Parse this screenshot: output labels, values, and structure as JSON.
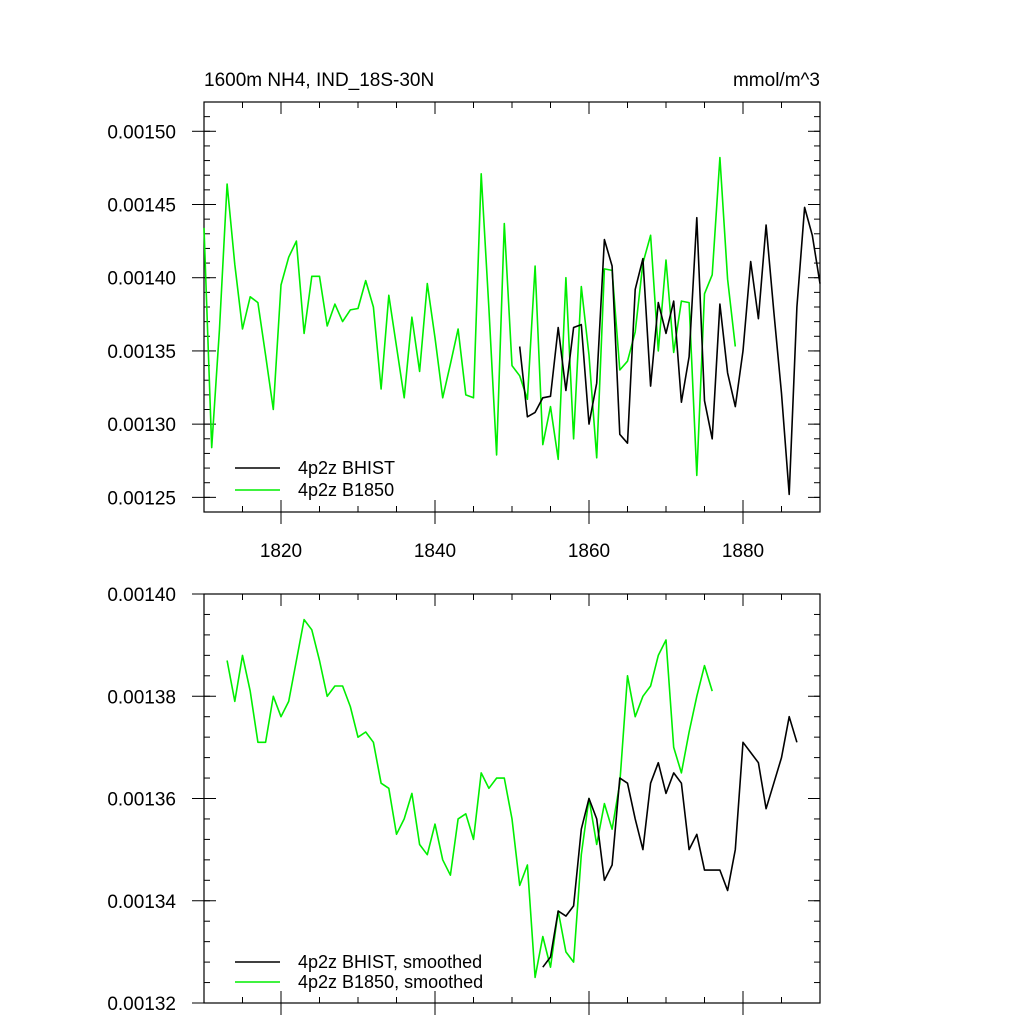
{
  "chart_data": [
    {
      "type": "line",
      "title": "1600m NH4, IND_18S-30N",
      "units": "mmol/m^3",
      "xlim": [
        1810,
        1890
      ],
      "ylim": [
        0.00124,
        0.00152
      ],
      "x_ticks": [
        {
          "value": 1820,
          "label": "1820"
        },
        {
          "value": 1840,
          "label": "1840"
        },
        {
          "value": 1860,
          "label": "1860"
        },
        {
          "value": 1880,
          "label": "1880"
        }
      ],
      "y_ticks": [
        {
          "value": 0.00125,
          "label": "0.00125"
        },
        {
          "value": 0.0013,
          "label": "0.00130"
        },
        {
          "value": 0.00135,
          "label": "0.00135"
        },
        {
          "value": 0.0014,
          "label": "0.00140"
        },
        {
          "value": 0.00145,
          "label": "0.00145"
        },
        {
          "value": 0.0015,
          "label": "0.00150"
        }
      ],
      "legend_position": "bottom-left",
      "series": [
        {
          "name": "4p2z BHIST",
          "color": "#000000",
          "x_start": 1851,
          "values": [
            0.001353,
            0.001305,
            0.001308,
            0.001318,
            0.001319,
            0.001366,
            0.001323,
            0.001366,
            0.001368,
            0.0013,
            0.001328,
            0.001426,
            0.001408,
            0.001293,
            0.001287,
            0.001392,
            0.001413,
            0.001326,
            0.001383,
            0.001362,
            0.001384,
            0.001315,
            0.001346,
            0.001441,
            0.001316,
            0.00129,
            0.001382,
            0.001335,
            0.001312,
            0.00135,
            0.001411,
            0.001372,
            0.001436,
            0.001377,
            0.001321,
            0.001252,
            0.00138,
            0.001448,
            0.001429,
            0.001396
          ]
        },
        {
          "name": "4p2z B1850",
          "color": "#00ee00",
          "x_start": 1810,
          "values": [
            0.001434,
            0.001284,
            0.001364,
            0.001464,
            0.001409,
            0.001365,
            0.001387,
            0.001383,
            0.001347,
            0.00131,
            0.001395,
            0.001414,
            0.001425,
            0.001362,
            0.001401,
            0.001401,
            0.001367,
            0.001382,
            0.00137,
            0.001378,
            0.001379,
            0.001398,
            0.00138,
            0.001324,
            0.001388,
            0.001353,
            0.001318,
            0.001373,
            0.001336,
            0.001396,
            0.001359,
            0.001318,
            0.001341,
            0.001365,
            0.00132,
            0.001318,
            0.001471,
            0.001379,
            0.001279,
            0.001437,
            0.00134,
            0.001333,
            0.001317,
            0.001408,
            0.001286,
            0.001312,
            0.001276,
            0.0014,
            0.00129,
            0.001394,
            0.001347,
            0.001277,
            0.001406,
            0.001405,
            0.001337,
            0.001343,
            0.001363,
            0.00141,
            0.001429,
            0.00135,
            0.001412,
            0.001349,
            0.001384,
            0.001383,
            0.001265,
            0.001389,
            0.001402,
            0.001482,
            0.001399,
            0.001353
          ]
        }
      ]
    },
    {
      "type": "line",
      "xlim": [
        1810,
        1890
      ],
      "ylim": [
        0.00132,
        0.0014
      ],
      "x_ticks": [
        {
          "value": 1820,
          "label": ""
        },
        {
          "value": 1840,
          "label": ""
        },
        {
          "value": 1860,
          "label": ""
        },
        {
          "value": 1880,
          "label": ""
        }
      ],
      "y_ticks": [
        {
          "value": 0.00132,
          "label": "0.00132"
        },
        {
          "value": 0.00134,
          "label": "0.00134"
        },
        {
          "value": 0.00136,
          "label": "0.00136"
        },
        {
          "value": 0.00138,
          "label": "0.00138"
        },
        {
          "value": 0.0014,
          "label": "0.00140"
        }
      ],
      "legend_position": "bottom-left",
      "series": [
        {
          "name": "4p2z BHIST, smoothed",
          "color": "#000000",
          "x_start": 1854,
          "values": [
            0.001327,
            0.001329,
            0.001338,
            0.001337,
            0.001339,
            0.001354,
            0.00136,
            0.001356,
            0.001344,
            0.001347,
            0.001364,
            0.001363,
            0.001356,
            0.00135,
            0.001363,
            0.001367,
            0.001361,
            0.001365,
            0.001363,
            0.00135,
            0.001353,
            0.001346,
            0.001346,
            0.001346,
            0.001342,
            0.00135,
            0.001371,
            0.001369,
            0.001367,
            0.001358,
            0.001363,
            0.001368,
            0.001376,
            0.001371
          ]
        },
        {
          "name": "4p2z B1850, smoothed",
          "color": "#00ee00",
          "x_start": 1813,
          "values": [
            0.001387,
            0.001379,
            0.001388,
            0.001381,
            0.001371,
            0.001371,
            0.00138,
            0.001376,
            0.001379,
            0.001387,
            0.001395,
            0.001393,
            0.001387,
            0.00138,
            0.001382,
            0.001382,
            0.001378,
            0.001372,
            0.001373,
            0.001371,
            0.001363,
            0.001362,
            0.001353,
            0.001356,
            0.001361,
            0.001351,
            0.001349,
            0.001355,
            0.001348,
            0.001345,
            0.001356,
            0.001357,
            0.001352,
            0.001365,
            0.001362,
            0.001364,
            0.001364,
            0.001356,
            0.001343,
            0.001347,
            0.001325,
            0.001333,
            0.001327,
            0.001338,
            0.00133,
            0.001328,
            0.001349,
            0.00136,
            0.001351,
            0.001359,
            0.001354,
            0.001363,
            0.001384,
            0.001376,
            0.00138,
            0.001382,
            0.001388,
            0.001391,
            0.00137,
            0.001365,
            0.001373,
            0.00138,
            0.001386,
            0.001381
          ]
        }
      ]
    }
  ]
}
